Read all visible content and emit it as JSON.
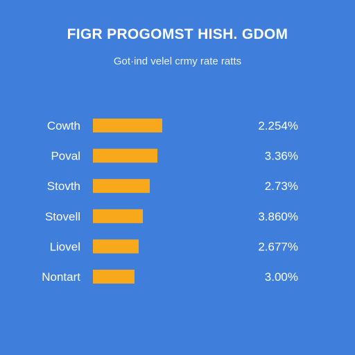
{
  "chart_data": {
    "type": "bar",
    "title": "FIGR PROGOMST HISH. GDOM",
    "subtitle": "Got·ind velel crmy rate ratts",
    "categories": [
      "Cowth",
      "Poval",
      "Stovth",
      "Stovell",
      "Liovel",
      "Nontart"
    ],
    "values": [
      100,
      93,
      82,
      72,
      66,
      60
    ],
    "value_labels": [
      "2.254%",
      "3.36%",
      "2.73%",
      "3.860%",
      "2.677%",
      "3.00%"
    ],
    "xlim": [
      0,
      100
    ],
    "grid": false,
    "legend": "none",
    "colors": {
      "background": "#3f7fdb",
      "bar": "#f7a81b",
      "text": "#ffffff"
    }
  }
}
